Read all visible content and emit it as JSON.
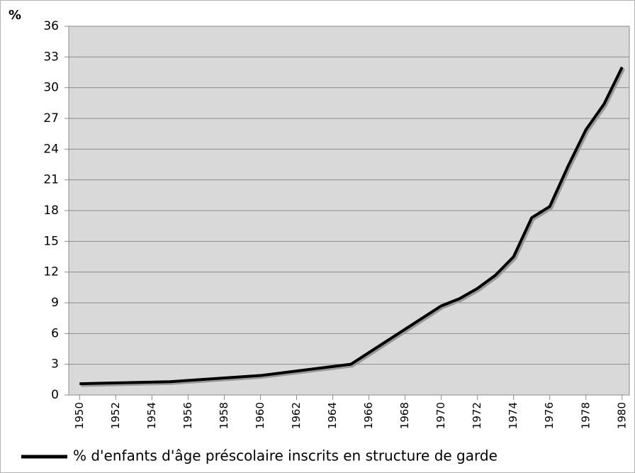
{
  "chart_data": {
    "type": "line",
    "ylabel": "%",
    "x": [
      1950,
      1955,
      1960,
      1965,
      1970,
      1971,
      1972,
      1973,
      1974,
      1975,
      1976,
      1977,
      1978,
      1979,
      1980
    ],
    "series": [
      {
        "name": "% d'enfants d'âge préscolaire inscrits en structure de garde",
        "color": "#000000",
        "values": [
          1.1,
          1.3,
          1.9,
          3.0,
          8.7,
          9.4,
          10.4,
          11.7,
          13.5,
          17.3,
          18.4,
          22.3,
          25.9,
          28.4,
          32.0
        ]
      }
    ],
    "xlim": [
      1949.4,
      1980.4
    ],
    "xticks": [
      1950,
      1952,
      1954,
      1956,
      1958,
      1960,
      1962,
      1964,
      1966,
      1968,
      1970,
      1972,
      1974,
      1976,
      1978,
      1980
    ],
    "ylim": [
      0,
      36
    ],
    "yticks": [
      0,
      3,
      6,
      9,
      12,
      15,
      18,
      21,
      24,
      27,
      30,
      33,
      36
    ],
    "grid": true,
    "legend": "bottom"
  }
}
